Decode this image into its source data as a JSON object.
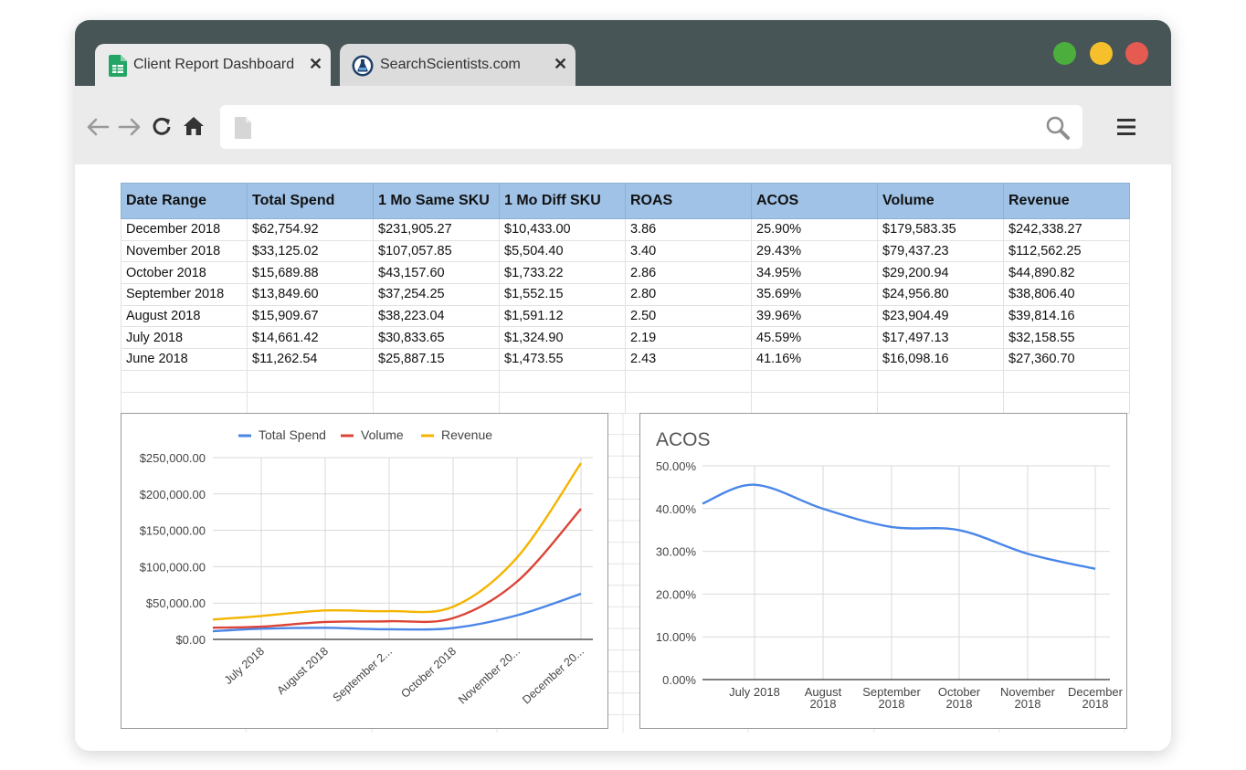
{
  "browser": {
    "tabs": [
      {
        "label": "Client Report Dashboard",
        "icon": "sheets-icon",
        "active": true
      },
      {
        "label": "SearchScientists.com",
        "icon": "flask-logo-icon",
        "active": false
      }
    ],
    "close_glyph": "✕",
    "window_dots": [
      "#4caf3d",
      "#f5c02b",
      "#e55a51"
    ],
    "nav_icons": [
      "back-arrow-icon",
      "forward-arrow-icon",
      "reload-icon",
      "home-icon",
      "page-icon",
      "search-icon",
      "menu-icon"
    ]
  },
  "table": {
    "headers": [
      "Date Range",
      "Total Spend",
      "1 Mo Same SKU",
      "1 Mo Diff SKU",
      "ROAS",
      "ACOS",
      "Volume",
      "Revenue"
    ],
    "rows": [
      [
        "December 2018",
        "$62,754.92",
        "$231,905.27",
        "$10,433.00",
        "3.86",
        "25.90%",
        "$179,583.35",
        "$242,338.27"
      ],
      [
        "November 2018",
        "$33,125.02",
        "$107,057.85",
        "$5,504.40",
        "3.40",
        "29.43%",
        "$79,437.23",
        "$112,562.25"
      ],
      [
        "October 2018",
        "$15,689.88",
        "$43,157.60",
        "$1,733.22",
        "2.86",
        "34.95%",
        "$29,200.94",
        "$44,890.82"
      ],
      [
        "September 2018",
        "$13,849.60",
        "$37,254.25",
        "$1,552.15",
        "2.80",
        "35.69%",
        "$24,956.80",
        "$38,806.40"
      ],
      [
        "August 2018",
        "$15,909.67",
        "$38,223.04",
        "$1,591.12",
        "2.50",
        "39.96%",
        "$23,904.49",
        "$39,814.16"
      ],
      [
        "July 2018",
        "$14,661.42",
        "$30,833.65",
        "$1,324.90",
        "2.19",
        "45.59%",
        "$17,497.13",
        "$32,158.55"
      ],
      [
        "June 2018",
        "$11,262.54",
        "$25,887.15",
        "$1,473.55",
        "2.43",
        "41.16%",
        "$16,098.16",
        "$27,360.70"
      ]
    ],
    "header_bg": "#9fc2e6"
  },
  "chart_data": [
    {
      "type": "line",
      "title": "",
      "x": [
        "June 2018",
        "July 2018",
        "August 2018",
        "September 2018",
        "October 2018",
        "November 2018",
        "December 2018"
      ],
      "x_tick_labels": [
        "July 2018",
        "August 2018",
        "September 2...",
        "October 2018",
        "November 20...",
        "December 20..."
      ],
      "y_tick_labels": [
        "$0.00",
        "$50,000.00",
        "$100,000.00",
        "$150,000.00",
        "$200,000.00",
        "$250,000.00"
      ],
      "ylim": [
        0,
        250000
      ],
      "grid": true,
      "legend": "top",
      "series": [
        {
          "name": "Total Spend",
          "color": "#4a86e8",
          "values": [
            11262.54,
            14661.42,
            15909.67,
            13849.6,
            15689.88,
            33125.02,
            62754.92
          ]
        },
        {
          "name": "Volume",
          "color": "#db4437",
          "values": [
            16098.16,
            17497.13,
            23904.49,
            24956.8,
            29200.94,
            79437.23,
            179583.35
          ]
        },
        {
          "name": "Revenue",
          "color": "#f4b400",
          "values": [
            27360.7,
            32158.55,
            39814.16,
            38806.4,
            44890.82,
            112562.25,
            242338.27
          ]
        }
      ]
    },
    {
      "type": "line",
      "title": "ACOS",
      "x": [
        "June 2018",
        "July 2018",
        "August 2018",
        "September 2018",
        "October 2018",
        "November 2018",
        "December 2018"
      ],
      "x_tick_labels": [
        [
          "July 2018"
        ],
        [
          "August",
          "2018"
        ],
        [
          "September",
          "2018"
        ],
        [
          "October",
          "2018"
        ],
        [
          "November",
          "2018"
        ],
        [
          "December",
          "2018"
        ]
      ],
      "y_tick_labels": [
        "0.00%",
        "10.00%",
        "20.00%",
        "30.00%",
        "40.00%",
        "50.00%"
      ],
      "ylim": [
        0,
        50
      ],
      "grid": true,
      "legend": "none",
      "series": [
        {
          "name": "ACOS",
          "color": "#4a86e8",
          "values": [
            41.16,
            45.59,
            39.96,
            35.69,
            34.95,
            29.43,
            25.9
          ]
        }
      ]
    }
  ]
}
